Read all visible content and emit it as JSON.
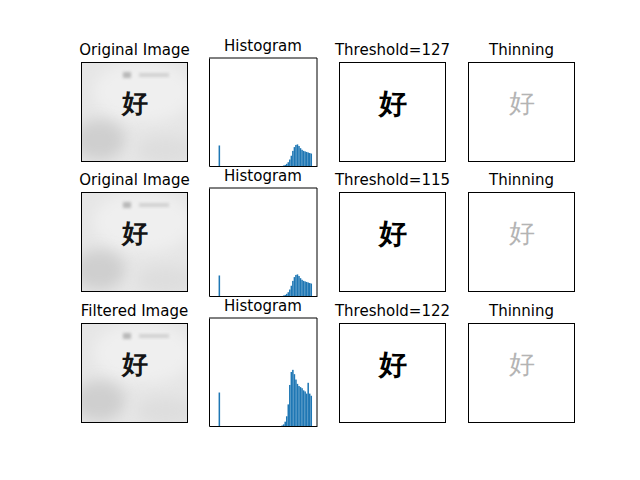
{
  "chart_data": [
    {
      "type": "image",
      "title": "Original Image",
      "text": "好",
      "color": "#141414"
    },
    {
      "type": "histogram",
      "title": "Histogram",
      "color": "#1f77b4",
      "tick_labels": false,
      "xlim": [
        -13,
        269
      ],
      "ylim": [
        0,
        1000
      ],
      "bins": [
        0,
        4,
        8,
        12,
        16,
        20,
        24,
        28,
        32,
        36,
        40,
        44,
        48,
        52,
        56,
        60,
        64,
        68,
        72,
        76,
        80,
        84,
        88,
        92,
        96,
        100,
        104,
        108,
        112,
        116,
        120,
        124,
        128,
        132,
        136,
        140,
        144,
        148,
        152,
        156,
        160,
        164,
        168,
        172,
        176,
        180,
        184,
        188,
        192,
        196,
        200,
        204,
        208,
        212,
        216,
        220,
        224,
        228,
        232,
        236,
        240,
        244,
        248,
        252,
        256
      ],
      "values": [
        0,
        0,
        0,
        190,
        0,
        0,
        0,
        0,
        0,
        0,
        0,
        0,
        0,
        0,
        0,
        0,
        0,
        0,
        0,
        0,
        0,
        0,
        0,
        0,
        0,
        0,
        0,
        0,
        0,
        0,
        0,
        0,
        0,
        0,
        0,
        0,
        0,
        0,
        0,
        0,
        0,
        0,
        0,
        0,
        0,
        5,
        10,
        20,
        35,
        60,
        95,
        140,
        175,
        195,
        200,
        185,
        165,
        150,
        140,
        135,
        130,
        125,
        120,
        115
      ]
    },
    {
      "type": "threshold",
      "title": "Threshold=127",
      "text": "好",
      "color": "#000000"
    },
    {
      "type": "thinning",
      "title": "Thinning",
      "text": "好",
      "color": "#b4b4b4"
    },
    {
      "type": "image",
      "title": "Original Image",
      "text": "好",
      "color": "#141414"
    },
    {
      "type": "histogram",
      "title": "Histogram",
      "color": "#1f77b4",
      "tick_labels": false,
      "xlim": [
        -13,
        269
      ],
      "ylim": [
        0,
        1000
      ],
      "bins": [
        0,
        4,
        8,
        12,
        16,
        20,
        24,
        28,
        32,
        36,
        40,
        44,
        48,
        52,
        56,
        60,
        64,
        68,
        72,
        76,
        80,
        84,
        88,
        92,
        96,
        100,
        104,
        108,
        112,
        116,
        120,
        124,
        128,
        132,
        136,
        140,
        144,
        148,
        152,
        156,
        160,
        164,
        168,
        172,
        176,
        180,
        184,
        188,
        192,
        196,
        200,
        204,
        208,
        212,
        216,
        220,
        224,
        228,
        232,
        236,
        240,
        244,
        248,
        252,
        256
      ],
      "values": [
        0,
        0,
        0,
        190,
        0,
        0,
        0,
        0,
        0,
        0,
        0,
        0,
        0,
        0,
        0,
        0,
        0,
        0,
        0,
        0,
        0,
        0,
        0,
        0,
        0,
        0,
        0,
        0,
        0,
        0,
        0,
        0,
        0,
        0,
        0,
        0,
        0,
        0,
        0,
        0,
        0,
        0,
        0,
        0,
        0,
        5,
        10,
        20,
        35,
        60,
        95,
        140,
        175,
        195,
        200,
        185,
        165,
        150,
        140,
        135,
        130,
        125,
        120,
        115
      ]
    },
    {
      "type": "threshold",
      "title": "Threshold=115",
      "text": "好",
      "color": "#000000"
    },
    {
      "type": "thinning",
      "title": "Thinning",
      "text": "好",
      "color": "#b4b4b4"
    },
    {
      "type": "image",
      "title": "Filtered Image",
      "text": "好",
      "color": "#141414"
    },
    {
      "type": "histogram",
      "title": "Histogram",
      "color": "#1f77b4",
      "tick_labels": false,
      "xlim": [
        -13,
        269
      ],
      "ylim": [
        0,
        1000
      ],
      "bins": [
        0,
        4,
        8,
        12,
        16,
        20,
        24,
        28,
        32,
        36,
        40,
        44,
        48,
        52,
        56,
        60,
        64,
        68,
        72,
        76,
        80,
        84,
        88,
        92,
        96,
        100,
        104,
        108,
        112,
        116,
        120,
        124,
        128,
        132,
        136,
        140,
        144,
        148,
        152,
        156,
        160,
        164,
        168,
        172,
        176,
        180,
        184,
        188,
        192,
        196,
        200,
        204,
        208,
        212,
        216,
        220,
        224,
        228,
        232,
        236,
        240,
        244,
        248,
        252,
        256
      ],
      "values": [
        0,
        0,
        0,
        310,
        0,
        0,
        0,
        0,
        0,
        0,
        0,
        0,
        0,
        0,
        0,
        0,
        0,
        0,
        0,
        0,
        0,
        0,
        0,
        0,
        0,
        0,
        0,
        0,
        0,
        0,
        0,
        0,
        0,
        0,
        0,
        0,
        0,
        0,
        0,
        0,
        0,
        0,
        0,
        0,
        5,
        15,
        40,
        90,
        200,
        380,
        500,
        520,
        480,
        430,
        390,
        370,
        360,
        350,
        330,
        320,
        300,
        400,
        300,
        280
      ]
    },
    {
      "type": "threshold",
      "title": "Threshold=122",
      "text": "好",
      "color": "#000000"
    },
    {
      "type": "thinning",
      "title": "Thinning",
      "text": "好",
      "color": "#b4b4b4"
    }
  ]
}
